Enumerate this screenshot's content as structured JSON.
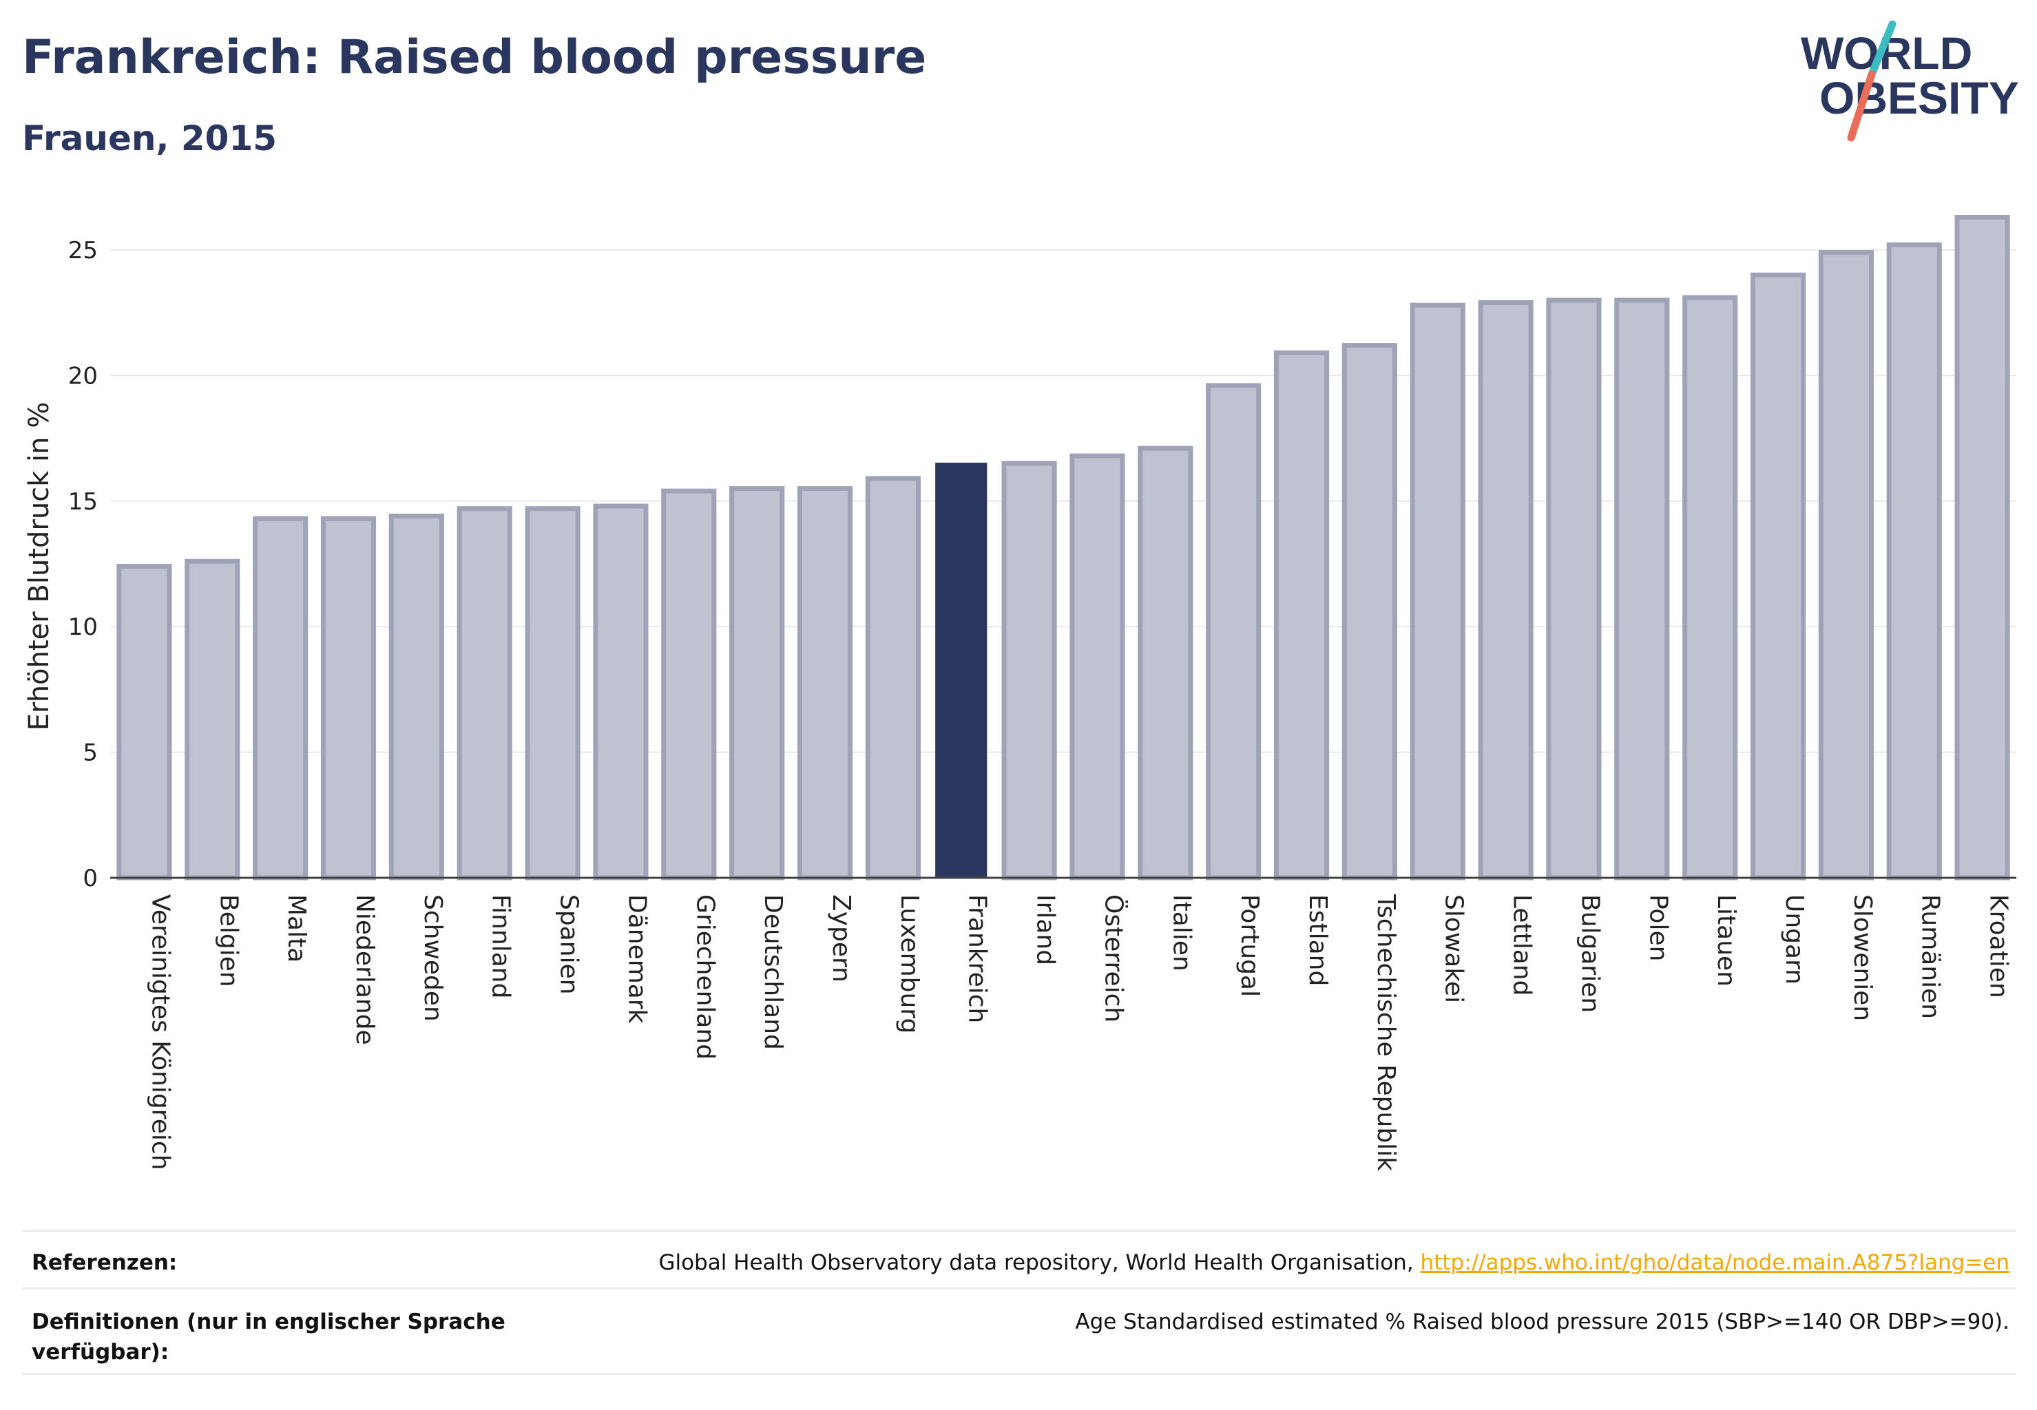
{
  "header": {
    "title": "Frankreich: Raised blood pressure",
    "subtitle": "Frauen, 2015"
  },
  "logo": {
    "line1": "WORLD",
    "line2": "OBESITY"
  },
  "chart_data": {
    "type": "bar",
    "title": "Frankreich: Raised blood pressure",
    "subtitle": "Frauen, 2015",
    "ylabel": "Erhöhter Blutdruck in %",
    "xlabel": "",
    "ylim": [
      0,
      27
    ],
    "yticks": [
      0,
      5,
      10,
      15,
      20,
      25
    ],
    "grid": true,
    "highlight": "Frankreich",
    "colors": {
      "bar": "#bfc2d0",
      "bar_border": "#9ea3b8",
      "highlight": "#2b365e"
    },
    "categories": [
      "Vereinigtes Königreich",
      "Belgien",
      "Malta",
      "Niederlande",
      "Schweden",
      "Finnland",
      "Spanien",
      "Dänemark",
      "Griechenland",
      "Deutschland",
      "Zypern",
      "Luxemburg",
      "Frankreich",
      "Irland",
      "Österreich",
      "Italien",
      "Portugal",
      "Estland",
      "Tschechische Republik",
      "Slowakei",
      "Lettland",
      "Bulgarien",
      "Polen",
      "Litauen",
      "Ungarn",
      "Slowenien",
      "Rumänien",
      "Kroatien"
    ],
    "values": [
      12.4,
      12.6,
      14.3,
      14.3,
      14.4,
      14.7,
      14.7,
      14.8,
      15.4,
      15.5,
      15.5,
      15.9,
      16.5,
      16.5,
      16.8,
      17.1,
      19.6,
      20.9,
      21.2,
      22.8,
      22.9,
      23.0,
      23.0,
      23.1,
      24.0,
      24.9,
      25.2,
      26.3
    ]
  },
  "footer": {
    "ref_label": "Referenzen:",
    "ref_text": "Global Health Observatory data repository, World Health Organisation, ",
    "ref_link": "http://apps.who.int/gho/data/node.main.A875?lang=en",
    "def_label": "Definitionen (nur in englischer Sprache verfügbar):",
    "def_text": "Age Standardised estimated % Raised blood pressure 2015 (SBP>=140 OR DBP>=90)."
  }
}
